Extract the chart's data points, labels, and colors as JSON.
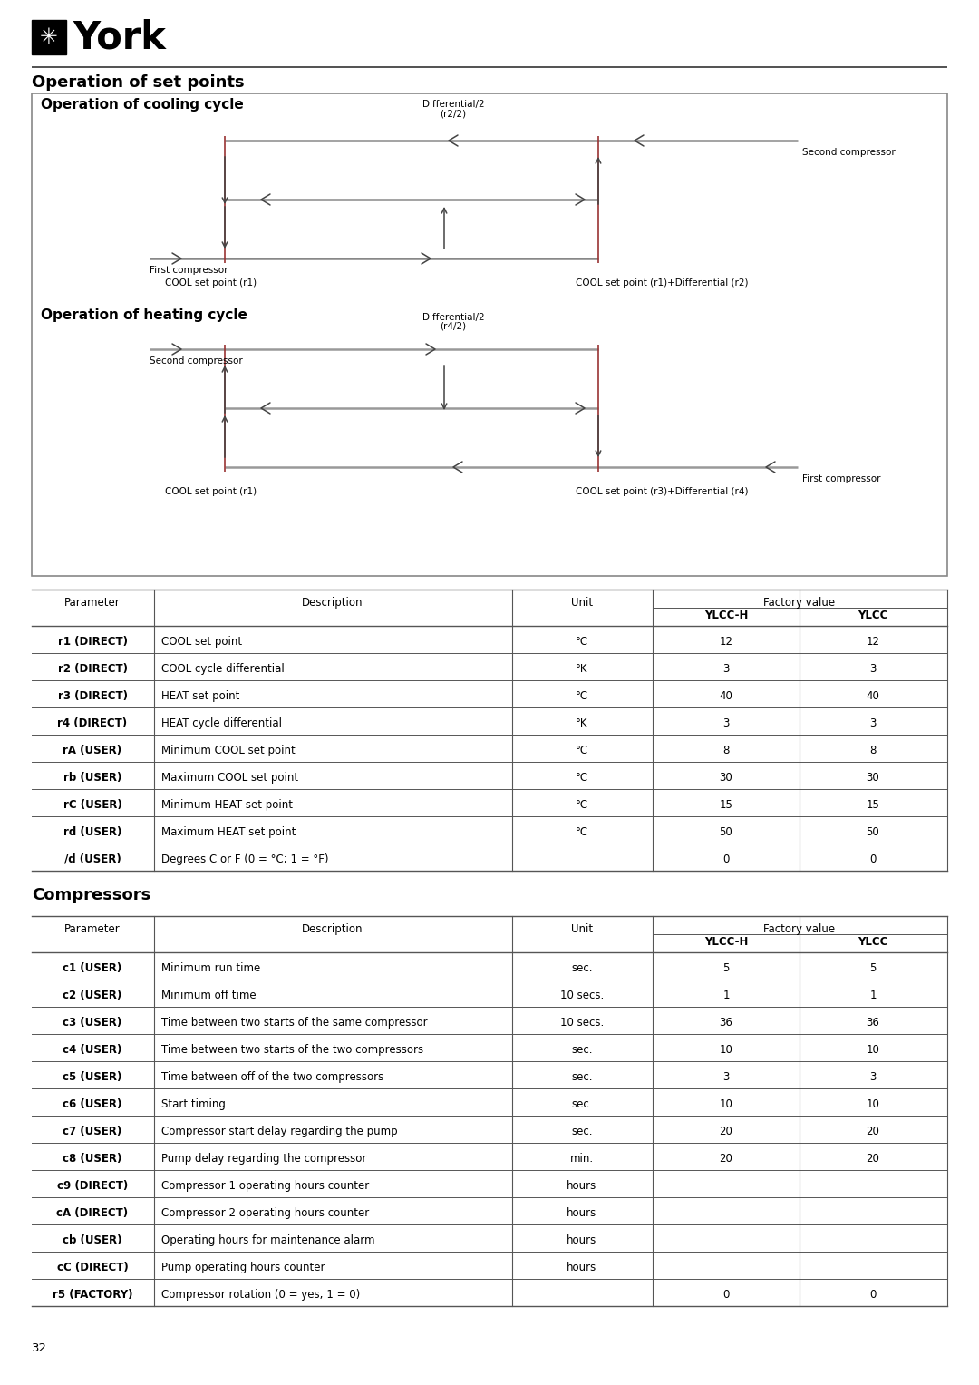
{
  "title_main": "Operation of set points",
  "section1_title": "Operation of cooling cycle",
  "section2_title": "Operation of heating cycle",
  "section3_title": "Compressors",
  "table1_rows": [
    [
      "r1 (DIRECT)",
      "COOL set point",
      "°C",
      "12",
      "12"
    ],
    [
      "r2 (DIRECT)",
      "COOL cycle differential",
      "°K",
      "3",
      "3"
    ],
    [
      "r3 (DIRECT)",
      "HEAT set point",
      "°C",
      "40",
      "40"
    ],
    [
      "r4 (DIRECT)",
      "HEAT cycle differential",
      "°K",
      "3",
      "3"
    ],
    [
      "rA (USER)",
      "Minimum COOL set point",
      "°C",
      "8",
      "8"
    ],
    [
      "rb (USER)",
      "Maximum COOL set point",
      "°C",
      "30",
      "30"
    ],
    [
      "rC (USER)",
      "Minimum HEAT set point",
      "°C",
      "15",
      "15"
    ],
    [
      "rd (USER)",
      "Maximum HEAT set point",
      "°C",
      "50",
      "50"
    ],
    [
      "/d (USER)",
      "Degrees C or F (0 = °C; 1 = °F)",
      "",
      "0",
      "0"
    ]
  ],
  "table2_rows": [
    [
      "c1 (USER)",
      "Minimum run time",
      "sec.",
      "5",
      "5"
    ],
    [
      "c2 (USER)",
      "Minimum off time",
      "10 secs.",
      "1",
      "1"
    ],
    [
      "c3 (USER)",
      "Time between two starts of the same compressor",
      "10 secs.",
      "36",
      "36"
    ],
    [
      "c4 (USER)",
      "Time between two starts of the two compressors",
      "sec.",
      "10",
      "10"
    ],
    [
      "c5 (USER)",
      "Time between off of the two compressors",
      "sec.",
      "3",
      "3"
    ],
    [
      "c6 (USER)",
      "Start timing",
      "sec.",
      "10",
      "10"
    ],
    [
      "c7 (USER)",
      "Compressor start delay regarding the pump",
      "sec.",
      "20",
      "20"
    ],
    [
      "c8 (USER)",
      "Pump delay regarding the compressor",
      "min.",
      "20",
      "20"
    ],
    [
      "c9 (DIRECT)",
      "Compressor 1 operating hours counter",
      "hours",
      "",
      ""
    ],
    [
      "cA (DIRECT)",
      "Compressor 2 operating hours counter",
      "hours",
      "",
      ""
    ],
    [
      "cb (USER)",
      "Operating hours for maintenance alarm",
      "hours",
      "",
      ""
    ],
    [
      "cC (DIRECT)",
      "Pump operating hours counter",
      "hours",
      "",
      ""
    ],
    [
      "r5 (FACTORY)",
      "Compressor rotation (0 = yes; 1 = 0)",
      "",
      "0",
      "0"
    ]
  ],
  "page_number": "32",
  "lc_cool": "#888888",
  "lc_heat": "#999999",
  "vc": "#993333",
  "bg": "#FFFFFF"
}
